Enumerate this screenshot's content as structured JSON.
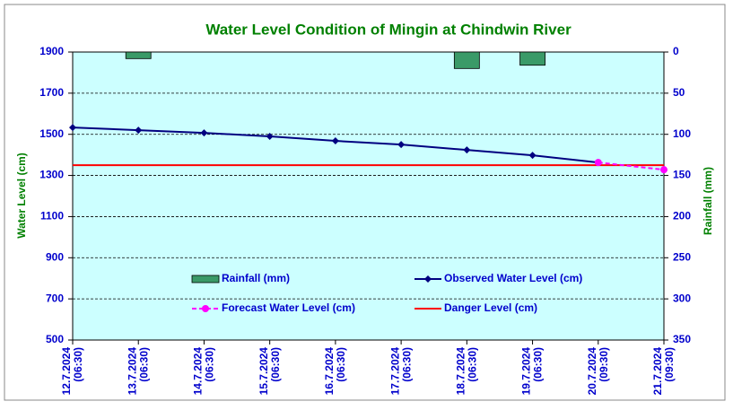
{
  "chart_data": {
    "type": "combo",
    "title": "Water Level Condition of Mingin at Chindwin River",
    "ylabel": "Water Level (cm)",
    "y2label": "Rainfall (mm)",
    "categories": [
      [
        "12.7.2024",
        "(06:30)"
      ],
      [
        "13.7.2024",
        "(06:30)"
      ],
      [
        "14.7.2024",
        "(06:30)"
      ],
      [
        "15.7.2024",
        "(06:30)"
      ],
      [
        "16.7.2024",
        "(06:30)"
      ],
      [
        "17.7.2024",
        "(06:30)"
      ],
      [
        "18.7.2024",
        "(06:30)"
      ],
      [
        "19.7.2024",
        "(06:30)"
      ],
      [
        "20.7.2024",
        "(09:30)"
      ],
      [
        "21.7.2024",
        "(09:30)"
      ]
    ],
    "ylim": [
      500,
      1900
    ],
    "yticks": [
      500,
      700,
      900,
      1100,
      1300,
      1500,
      1700,
      1900
    ],
    "y2lim": [
      0,
      350
    ],
    "y2ticks": [
      0,
      50,
      100,
      150,
      200,
      250,
      300,
      350
    ],
    "y2_reversed": true,
    "grid": true,
    "series": [
      {
        "name": "Rainfall (mm)",
        "kind": "bar",
        "axis": "y2",
        "color": "#3a9a68",
        "values": [
          0,
          8,
          0,
          0,
          0,
          0,
          20,
          16,
          0,
          null
        ]
      },
      {
        "name": "Observed Water Level (cm)",
        "kind": "line",
        "color": "#000080",
        "values": [
          1533,
          1520,
          1507,
          1490,
          1468,
          1450,
          1424,
          1398,
          1363,
          null
        ]
      },
      {
        "name": "Forecast Water Level (cm)",
        "kind": "dashed",
        "color": "#ff00ff",
        "values": [
          null,
          null,
          null,
          null,
          null,
          null,
          null,
          null,
          1363,
          1328
        ]
      },
      {
        "name": "Danger Level (cm)",
        "kind": "plain",
        "color": "#ff0000",
        "values": [
          1350,
          1350,
          1350,
          1350,
          1350,
          1350,
          1350,
          1350,
          1350,
          1350
        ]
      }
    ]
  }
}
